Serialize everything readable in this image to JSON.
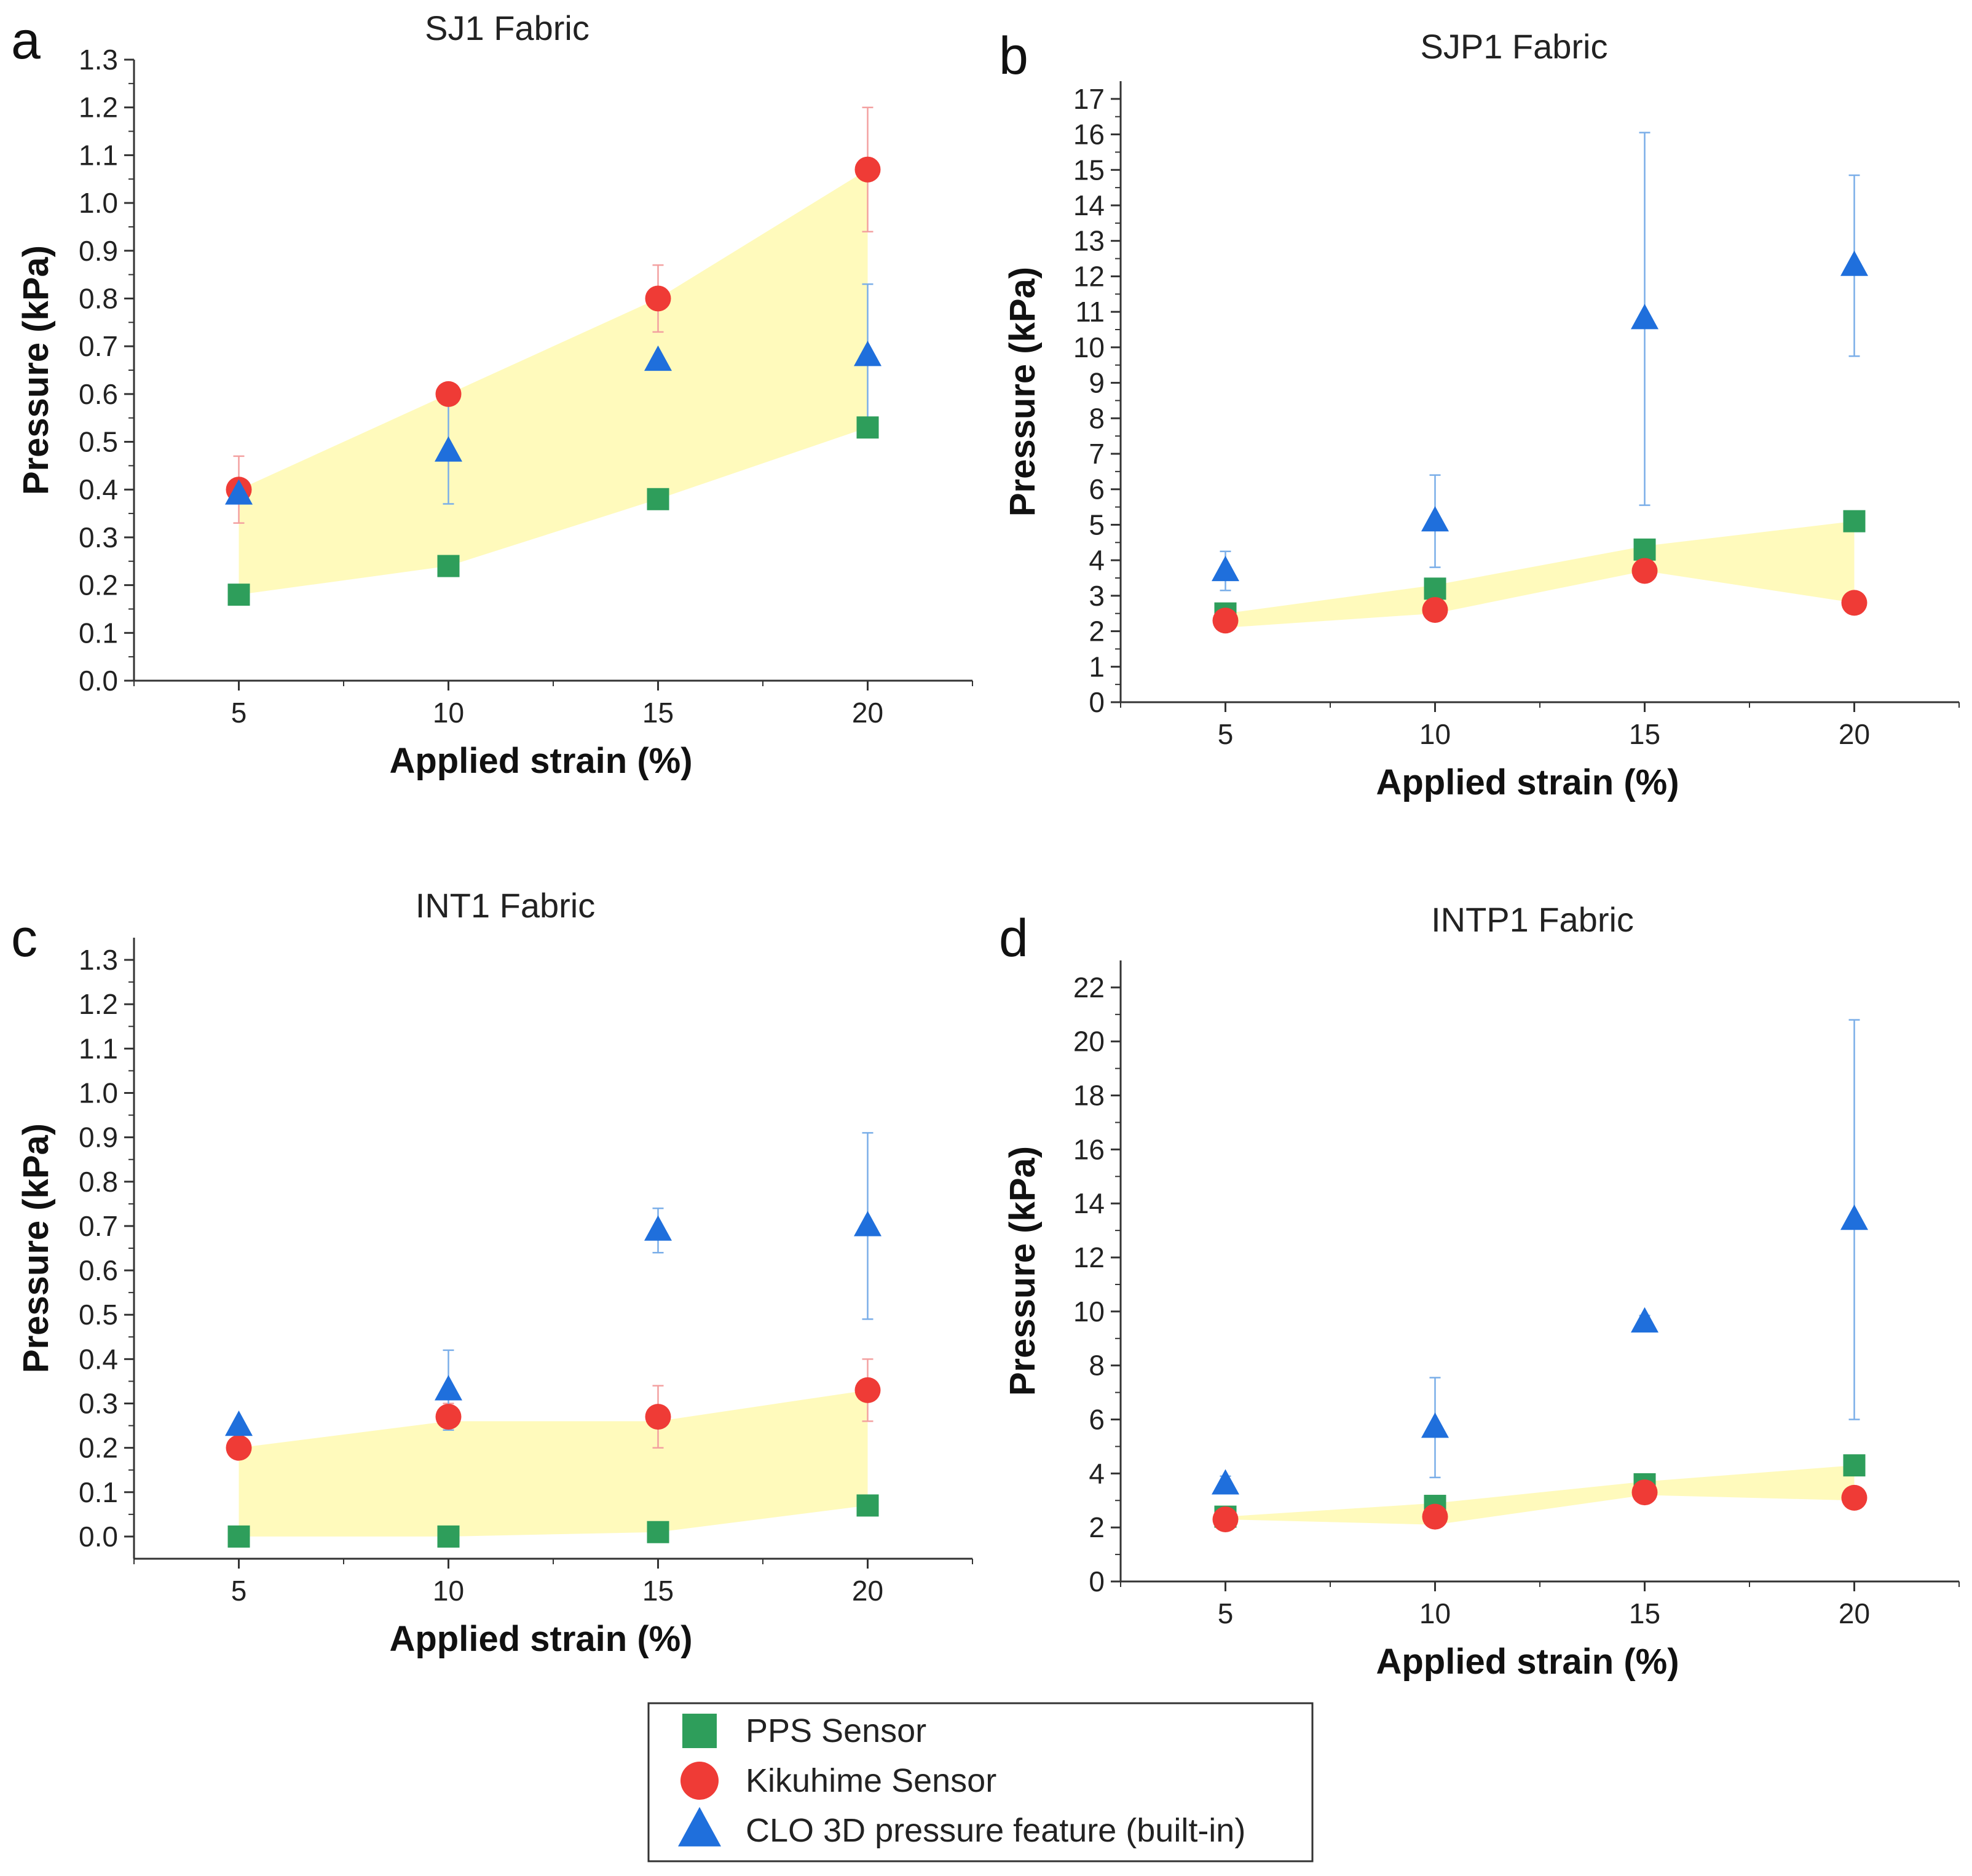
{
  "legend": {
    "entries": [
      {
        "name": "PPS Sensor",
        "marker": "square",
        "color": "#2e9e5b"
      },
      {
        "name": "Kikuhime Sensor",
        "marker": "circle",
        "color": "#ef3b36"
      },
      {
        "name": "CLO 3D pressure feature (built-in)",
        "marker": "triangle",
        "color": "#1f6fdc"
      }
    ]
  },
  "colors": {
    "pps": "#2e9e5b",
    "kikuhime": "#ef3b36",
    "clo": "#1f6fdc",
    "band": "#fffab8",
    "kik_err": "#f3a0a0",
    "clo_err": "#7aaee8"
  },
  "chart_data": [
    {
      "id": "a",
      "panel_letter": "a",
      "type": "scatter",
      "title": "SJ1 Fabric",
      "xlabel": "Applied strain (%)",
      "ylabel": "Pressure (kPa)",
      "x": [
        5,
        10,
        15,
        20
      ],
      "x_ticks": [
        "5",
        "10",
        "15",
        "20"
      ],
      "xlim": [
        2.5,
        22.5
      ],
      "ylim": [
        0,
        1.3
      ],
      "y_ticks": [
        "0.0",
        "0.1",
        "0.2",
        "0.3",
        "0.4",
        "0.5",
        "0.6",
        "0.7",
        "0.8",
        "0.9",
        "1.0",
        "1.1",
        "1.2",
        "1.3"
      ],
      "series": [
        {
          "name": "PPS Sensor",
          "values": [
            0.18,
            0.24,
            0.38,
            0.53
          ],
          "err": [
            0,
            0,
            0,
            0
          ]
        },
        {
          "name": "Kikuhime Sensor",
          "values": [
            0.4,
            0.6,
            0.8,
            1.07
          ],
          "err": [
            0.07,
            0,
            0.07,
            0.13
          ]
        },
        {
          "name": "CLO 3D pressure feature (built-in)",
          "values": [
            0.39,
            0.48,
            0.67,
            0.68
          ],
          "err": [
            0,
            0.11,
            0,
            0.15
          ]
        }
      ],
      "band": {
        "upper": [
          0.4,
          0.6,
          0.8,
          1.07
        ],
        "lower": [
          0.18,
          0.24,
          0.38,
          0.53
        ]
      }
    },
    {
      "id": "b",
      "panel_letter": "b",
      "type": "scatter",
      "title": "SJP1 Fabric",
      "xlabel": "Applied strain (%)",
      "ylabel": "Pressure (kPa)",
      "x": [
        5,
        10,
        15,
        20
      ],
      "x_ticks": [
        "5",
        "10",
        "15",
        "20"
      ],
      "xlim": [
        2.5,
        22.5
      ],
      "ylim": [
        0,
        17.5
      ],
      "y_ticks": [
        "0",
        "1",
        "2",
        "3",
        "4",
        "5",
        "6",
        "7",
        "8",
        "9",
        "10",
        "11",
        "12",
        "13",
        "14",
        "15",
        "16",
        "17"
      ],
      "series": [
        {
          "name": "PPS Sensor",
          "values": [
            2.5,
            3.2,
            4.3,
            5.1
          ],
          "err": [
            0,
            0,
            0,
            0
          ]
        },
        {
          "name": "Kikuhime Sensor",
          "values": [
            2.3,
            2.6,
            3.7,
            2.8
          ],
          "err": [
            0,
            0,
            0,
            0
          ]
        },
        {
          "name": "CLO 3D pressure feature (built-in)",
          "values": [
            3.7,
            5.1,
            10.8,
            12.3
          ],
          "err": [
            0.55,
            1.3,
            5.25,
            2.55
          ]
        }
      ],
      "band": {
        "upper": [
          2.5,
          3.3,
          4.4,
          5.1
        ],
        "lower": [
          2.1,
          2.5,
          3.7,
          2.8
        ]
      }
    },
    {
      "id": "c",
      "panel_letter": "c",
      "type": "scatter",
      "title": "INT1 Fabric",
      "xlabel": "Applied strain (%)",
      "ylabel": "Pressure (kPa)",
      "x": [
        5,
        10,
        15,
        20
      ],
      "x_ticks": [
        "5",
        "10",
        "15",
        "20"
      ],
      "xlim": [
        2.5,
        22.5
      ],
      "ylim": [
        -0.05,
        1.35
      ],
      "y_ticks": [
        "0.0",
        "0.1",
        "0.2",
        "0.3",
        "0.4",
        "0.5",
        "0.6",
        "0.7",
        "0.8",
        "0.9",
        "1.0",
        "1.1",
        "1.2",
        "1.3"
      ],
      "series": [
        {
          "name": "PPS Sensor",
          "values": [
            0.0,
            0.0,
            0.01,
            0.07
          ],
          "err": [
            0,
            0,
            0,
            0
          ]
        },
        {
          "name": "Kikuhime Sensor",
          "values": [
            0.2,
            0.27,
            0.27,
            0.33
          ],
          "err": [
            0,
            0.03,
            0.07,
            0.07
          ]
        },
        {
          "name": "CLO 3D pressure feature (built-in)",
          "values": [
            0.25,
            0.33,
            0.69,
            0.7
          ],
          "err": [
            0,
            0.09,
            0.05,
            0.21
          ]
        }
      ],
      "band": {
        "upper": [
          0.2,
          0.26,
          0.26,
          0.33
        ],
        "lower": [
          0.0,
          0.0,
          0.01,
          0.07
        ]
      }
    },
    {
      "id": "d",
      "panel_letter": "d",
      "type": "scatter",
      "title": "INTP1 Fabric",
      "xlabel": "Applied strain (%)",
      "ylabel": "Pressure (kPa)",
      "x": [
        5,
        10,
        15,
        20
      ],
      "x_ticks": [
        "5",
        "10",
        "15",
        "20"
      ],
      "xlim": [
        2.5,
        22.5
      ],
      "ylim": [
        0,
        23
      ],
      "y_ticks": [
        "0",
        "2",
        "4",
        "6",
        "8",
        "10",
        "12",
        "14",
        "16",
        "18",
        "20",
        "22"
      ],
      "series": [
        {
          "name": "PPS Sensor",
          "values": [
            2.4,
            2.8,
            3.6,
            4.3
          ],
          "err": [
            0,
            0,
            0,
            0
          ]
        },
        {
          "name": "Kikuhime Sensor",
          "values": [
            2.3,
            2.4,
            3.3,
            3.1
          ],
          "err": [
            0,
            0,
            0,
            0
          ]
        },
        {
          "name": "CLO 3D pressure feature (built-in)",
          "values": [
            3.6,
            5.7,
            9.6,
            13.4
          ],
          "err": [
            0.3,
            1.85,
            0.25,
            7.4
          ]
        }
      ],
      "band": {
        "upper": [
          2.4,
          2.9,
          3.7,
          4.3
        ],
        "lower": [
          2.3,
          2.1,
          3.2,
          3.0
        ]
      }
    }
  ]
}
